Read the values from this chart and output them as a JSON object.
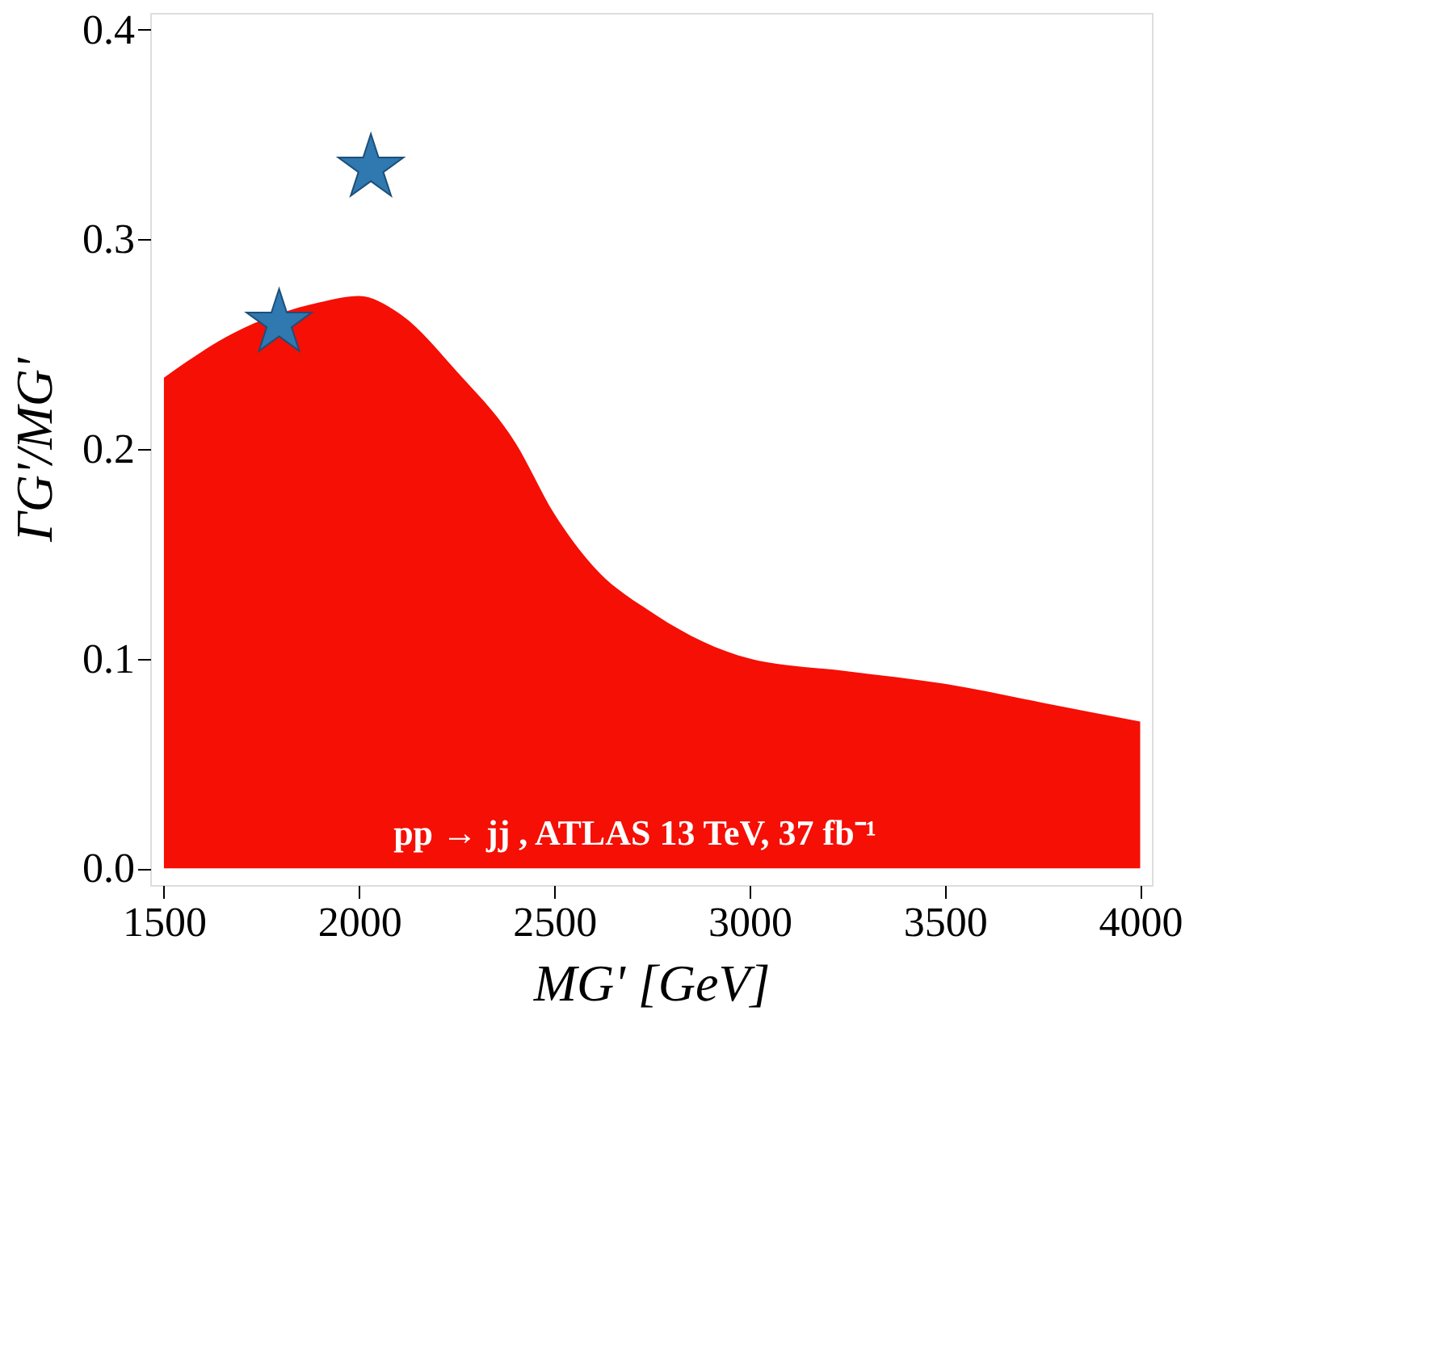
{
  "chart_data": {
    "type": "area",
    "xlabel": "MG' [GeV]",
    "ylabel": "ΓG'/MG'",
    "xlim": [
      1465,
      4030
    ],
    "ylim": [
      -0.008,
      0.408
    ],
    "xticks": [
      1500,
      2000,
      2500,
      3000,
      3500,
      4000
    ],
    "yticks": [
      {
        "value": 0,
        "label": "0.0"
      },
      0.1,
      0.2,
      0.3,
      0.4
    ],
    "series": [
      {
        "color": "#f50f05",
        "x": [
          1500,
          1675,
          1900,
          2000,
          2100,
          2250,
          2400,
          2500,
          2600,
          2750,
          3000,
          3250,
          3500,
          3750,
          4000
        ],
        "values": [
          0.234,
          0.255,
          0.27,
          0.273,
          0.265,
          0.237,
          0.203,
          0.169,
          0.144,
          0.122,
          0.1,
          0.094,
          0.088,
          0.079,
          0.07
        ]
      },
      {
        "type": "scatter",
        "color": "#2f78b0",
        "marker": "star",
        "x": [
          1795,
          2030
        ],
        "values": [
          0.26,
          0.334
        ]
      }
    ],
    "annotations": [
      "pp → jj , ATLAS 13 TeV, 37 fb⁻¹"
    ]
  }
}
